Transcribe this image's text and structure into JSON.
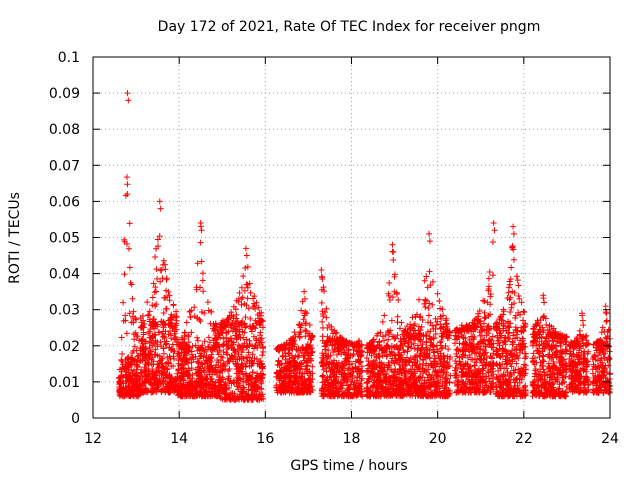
{
  "chart_data": {
    "type": "scatter",
    "title": "Day 172 of 2021, Rate Of TEC Index for receiver pngm",
    "xlabel": "GPS time / hours",
    "ylabel": "ROTI / TECUs",
    "xlim": [
      12,
      24
    ],
    "ylim": [
      0,
      0.1
    ],
    "xticks": [
      12,
      14,
      16,
      18,
      20,
      22,
      24
    ],
    "yticks": [
      0,
      0.01,
      0.02,
      0.03,
      0.04,
      0.05,
      0.06,
      0.07,
      0.08,
      0.09,
      0.1
    ],
    "grid": true,
    "marker": "+",
    "series": [
      {
        "name": "ROTI",
        "color": "#ff0000",
        "segments": [
          {
            "x_start": 12.6,
            "x_end": 13.1,
            "y_base": [
              0.006,
              0.016
            ],
            "y_peak": 0.09,
            "peak_at": 12.8
          },
          {
            "x_start": 13.1,
            "x_end": 13.95,
            "y_base": [
              0.007,
              0.025
            ],
            "y_peak": 0.06,
            "peak_at": 13.55
          },
          {
            "x_start": 13.95,
            "x_end": 14.95,
            "y_base": [
              0.006,
              0.019
            ],
            "y_peak": 0.054,
            "peak_at": 14.5
          },
          {
            "x_start": 14.95,
            "x_end": 15.95,
            "y_base": [
              0.005,
              0.025
            ],
            "y_peak": 0.047,
            "peak_at": 15.55
          },
          {
            "x_start": 16.25,
            "x_end": 17.1,
            "y_base": [
              0.007,
              0.019
            ],
            "y_peak": 0.035,
            "peak_at": 16.9
          },
          {
            "x_start": 17.3,
            "x_end": 18.25,
            "y_base": [
              0.006,
              0.02
            ],
            "y_peak": 0.041,
            "peak_at": 17.3
          },
          {
            "x_start": 18.35,
            "x_end": 19.2,
            "y_base": [
              0.006,
              0.019
            ],
            "y_peak": 0.048,
            "peak_at": 18.95
          },
          {
            "x_start": 19.2,
            "x_end": 20.3,
            "y_base": [
              0.006,
              0.022
            ],
            "y_peak": 0.051,
            "peak_at": 19.8
          },
          {
            "x_start": 20.4,
            "x_end": 21.3,
            "y_base": [
              0.007,
              0.024
            ],
            "y_peak": 0.054,
            "peak_at": 21.3
          },
          {
            "x_start": 21.35,
            "x_end": 22.05,
            "y_base": [
              0.006,
              0.024
            ],
            "y_peak": 0.053,
            "peak_at": 21.75
          },
          {
            "x_start": 22.2,
            "x_end": 23.0,
            "y_base": [
              0.006,
              0.022
            ],
            "y_peak": 0.034,
            "peak_at": 22.45
          },
          {
            "x_start": 23.05,
            "x_end": 23.5,
            "y_base": [
              0.007,
              0.02
            ],
            "y_peak": 0.029,
            "peak_at": 23.35
          },
          {
            "x_start": 23.6,
            "x_end": 24.0,
            "y_base": [
              0.007,
              0.02
            ],
            "y_peak": 0.031,
            "peak_at": 23.9
          }
        ]
      }
    ]
  }
}
